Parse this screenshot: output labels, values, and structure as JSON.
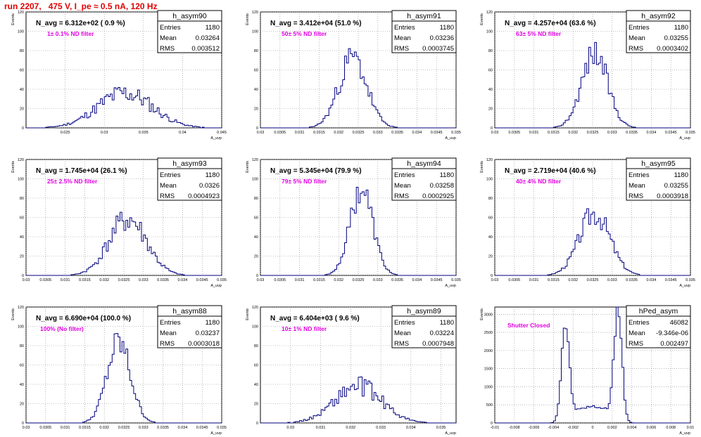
{
  "page_title": "run 2207,   475 V, I_pe ≈ 0.5 nA, 120 Hz",
  "colors": {
    "title": "#e00000",
    "filter": "#e000e0",
    "hist": "#00007f",
    "grid": "#888888"
  },
  "chart_data": [
    {
      "type": "bar",
      "name": "h_asym90",
      "ylabel": "Events",
      "xlabel": "A_uvp",
      "xlim": [
        0.02,
        0.045
      ],
      "ylim": [
        0,
        120
      ],
      "xticks": [
        "0.025",
        "0.03",
        "0.035",
        "0.04",
        "0.045"
      ],
      "yticks": [
        "0",
        "20",
        "40",
        "60",
        "80",
        "100",
        "120"
      ],
      "navg": "N_avg = 6.312e+02 ( 0.9 %)",
      "filter": "1± 0.1% ND filter",
      "stats": [
        {
          "k": "Entries",
          "v": "1180"
        },
        {
          "k": "Mean",
          "v": "0.03264"
        },
        {
          "k": "RMS",
          "v": "0.003512"
        }
      ],
      "mean": 0.03264,
      "sigma": 0.0035,
      "peak": 36,
      "noise": 0.3,
      "seed": 11
    },
    {
      "type": "bar",
      "name": "h_asym91",
      "ylabel": "Events",
      "xlabel": "A_uvp",
      "xlim": [
        0.03,
        0.035
      ],
      "ylim": [
        0,
        120
      ],
      "xticks": [
        "0.03",
        "0.0305",
        "0.031",
        "0.0315",
        "0.032",
        "0.0325",
        "0.033",
        "0.0335",
        "0.034",
        "0.0345",
        "0.035"
      ],
      "yticks": [
        "0",
        "20",
        "40",
        "60",
        "80",
        "100",
        "120"
      ],
      "navg": "N_avg = 3.412e+04 (51.0 %)",
      "filter": "50± 5% ND filter",
      "stats": [
        {
          "k": "Entries",
          "v": "1180"
        },
        {
          "k": "Mean",
          "v": "0.03236"
        },
        {
          "k": "RMS",
          "v": "0.0003745"
        }
      ],
      "mean": 0.03236,
      "sigma": 0.00036,
      "peak": 72,
      "noise": 0.22,
      "seed": 23
    },
    {
      "type": "bar",
      "name": "h_asym92",
      "ylabel": "Events",
      "xlabel": "A_uvp",
      "xlim": [
        0.03,
        0.035
      ],
      "ylim": [
        0,
        120
      ],
      "xticks": [
        "0.03",
        "0.0305",
        "0.031",
        "0.0315",
        "0.032",
        "0.0325",
        "0.033",
        "0.0335",
        "0.034",
        "0.0345",
        "0.035"
      ],
      "yticks": [
        "0",
        "20",
        "40",
        "60",
        "80",
        "100",
        "120"
      ],
      "navg": "N_avg = 4.257e+04 (63.6 %)",
      "filter": "63± 5% ND filter",
      "stats": [
        {
          "k": "Entries",
          "v": "1180"
        },
        {
          "k": "Mean",
          "v": "0.03255"
        },
        {
          "k": "RMS",
          "v": "0.0003402"
        }
      ],
      "mean": 0.03255,
      "sigma": 0.00033,
      "peak": 78,
      "noise": 0.2,
      "seed": 37
    },
    {
      "type": "bar",
      "name": "h_asym93",
      "ylabel": "Events",
      "xlabel": "A_uvp",
      "xlim": [
        0.03,
        0.035
      ],
      "ylim": [
        0,
        120
      ],
      "xticks": [
        "0.03",
        "0.0305",
        "0.031",
        "0.0315",
        "0.032",
        "0.0325",
        "0.033",
        "0.0335",
        "0.034",
        "0.0345",
        "0.035"
      ],
      "yticks": [
        "0",
        "20",
        "40",
        "60",
        "80",
        "100",
        "120"
      ],
      "navg": "N_avg = 1.745e+04 (26.1 %)",
      "filter": "25± 2.5% ND filter",
      "stats": [
        {
          "k": "Entries",
          "v": "1180"
        },
        {
          "k": "Mean",
          "v": "0.0326"
        },
        {
          "k": "RMS",
          "v": "0.0004923"
        }
      ],
      "mean": 0.0326,
      "sigma": 0.00048,
      "peak": 58,
      "noise": 0.25,
      "seed": 41
    },
    {
      "type": "bar",
      "name": "h_asym94",
      "ylabel": "Events",
      "xlabel": "A_uvp",
      "xlim": [
        0.03,
        0.035
      ],
      "ylim": [
        0,
        120
      ],
      "xticks": [
        "0.03",
        "0.0305",
        "0.031",
        "0.0315",
        "0.032",
        "0.0325",
        "0.033",
        "0.0335",
        "0.034",
        "0.0345",
        "0.035"
      ],
      "yticks": [
        "0",
        "20",
        "40",
        "60",
        "80",
        "100",
        "120"
      ],
      "navg": "N_avg = 5.345e+04 (79.9 %)",
      "filter": "79± 5% ND filter",
      "stats": [
        {
          "k": "Entries",
          "v": "1180"
        },
        {
          "k": "Mean",
          "v": "0.03258"
        },
        {
          "k": "RMS",
          "v": "0.0002925"
        }
      ],
      "mean": 0.03258,
      "sigma": 0.00029,
      "peak": 90,
      "noise": 0.18,
      "seed": 53
    },
    {
      "type": "bar",
      "name": "h_asym95",
      "ylabel": "Events",
      "xlabel": "A_uvp",
      "xlim": [
        0.03,
        0.035
      ],
      "ylim": [
        0,
        120
      ],
      "xticks": [
        "0.03",
        "0.0305",
        "0.031",
        "0.0315",
        "0.032",
        "0.0325",
        "0.033",
        "0.0335",
        "0.034",
        "0.0345",
        "0.035"
      ],
      "yticks": [
        "0",
        "20",
        "40",
        "60",
        "80",
        "100",
        "120"
      ],
      "navg": "N_avg = 2.719e+04 (40.6 %)",
      "filter": "40± 4% ND filter",
      "stats": [
        {
          "k": "Entries",
          "v": "1180"
        },
        {
          "k": "Mean",
          "v": "0.03255"
        },
        {
          "k": "RMS",
          "v": "0.0003918"
        }
      ],
      "mean": 0.03255,
      "sigma": 0.00039,
      "peak": 65,
      "noise": 0.2,
      "seed": 67
    },
    {
      "type": "bar",
      "name": "h_asym88",
      "ylabel": "Events",
      "xlabel": "A_uvp",
      "xlim": [
        0.03,
        0.035
      ],
      "ylim": [
        0,
        120
      ],
      "xticks": [
        "0.03",
        "0.0305",
        "0.031",
        "0.0315",
        "0.032",
        "0.0325",
        "0.033",
        "0.0335",
        "0.034",
        "0.0345",
        "0.035"
      ],
      "yticks": [
        "0",
        "20",
        "40",
        "60",
        "80",
        "100",
        "120"
      ],
      "navg": "N_avg = 6.690e+04 (100.0 %)",
      "filter": "100% (No filter)",
      "stats": [
        {
          "k": "Entries",
          "v": "1180"
        },
        {
          "k": "Mean",
          "v": "0.03237"
        },
        {
          "k": "RMS",
          "v": "0.0003018"
        }
      ],
      "mean": 0.03237,
      "sigma": 0.0003,
      "peak": 83,
      "noise": 0.2,
      "seed": 79
    },
    {
      "type": "bar",
      "name": "h_asym89",
      "ylabel": "Events",
      "xlabel": "A_uvp",
      "xlim": [
        0.029,
        0.0355
      ],
      "ylim": [
        0,
        120
      ],
      "xticks": [
        "0.03",
        "0.031",
        "0.032",
        "0.033",
        "0.034",
        "0.035"
      ],
      "yticks": [
        "0",
        "20",
        "40",
        "60",
        "80",
        "100",
        "120"
      ],
      "navg": "N_avg = 6.404e+03 ( 9.6 %)",
      "filter": "10± 1% ND filter",
      "stats": [
        {
          "k": "Entries",
          "v": "1180"
        },
        {
          "k": "Mean",
          "v": "0.03224"
        },
        {
          "k": "RMS",
          "v": "0.0007948"
        }
      ],
      "mean": 0.03224,
      "sigma": 0.00078,
      "peak": 38,
      "noise": 0.28,
      "seed": 89
    },
    {
      "type": "bar",
      "name": "hPed_asym",
      "ylabel": "Events",
      "xlabel": "A_uvp",
      "xlim": [
        -0.01,
        0.01
      ],
      "ylim": [
        0,
        3200
      ],
      "xticks": [
        "-0.01",
        "-0.008",
        "-0.006",
        "-0.004",
        "-0.002",
        "0",
        "0.002",
        "0.004",
        "0.006",
        "0.008",
        "0.01"
      ],
      "yticks": [
        "0",
        "500",
        "1000",
        "1500",
        "2000",
        "2500",
        "3000"
      ],
      "navg": "",
      "filter": "Shutter Closed",
      "stats": [
        {
          "k": "Entries",
          "v": "46082"
        },
        {
          "k": "Mean",
          "v": "-9.346e-06"
        },
        {
          "k": "RMS",
          "v": "0.002497"
        }
      ],
      "bimodal": true,
      "mean": 0.0,
      "sigma": 0.0004,
      "peak": 3000,
      "noise": 0.08,
      "seed": 97
    }
  ]
}
